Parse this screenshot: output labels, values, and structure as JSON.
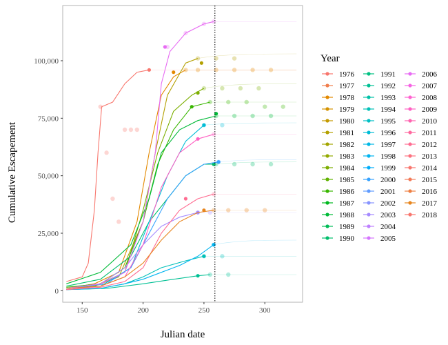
{
  "chart_data": {
    "type": "line",
    "xlabel": "Julian date",
    "ylabel": "Cumulative Escapement",
    "x_ticks": [
      150,
      200,
      250,
      300
    ],
    "x_tick_labels": [
      "150",
      "200",
      "250",
      "300"
    ],
    "y_ticks": [
      0,
      25000,
      50000,
      75000,
      100000
    ],
    "y_tick_labels": [
      "0",
      "25,000",
      "50,000",
      "75,000",
      "100,000"
    ],
    "xlim": [
      134,
      331
    ],
    "ylim": [
      -5000,
      124000
    ],
    "grid": false,
    "panel_border": true,
    "reference_line": {
      "axis": "x",
      "value": 259,
      "style": "dotted"
    },
    "legend": {
      "title": "Year",
      "placement": "right",
      "columns": 3,
      "entries": [
        {
          "name": "1976",
          "color": "#F8766D"
        },
        {
          "name": "1977",
          "color": "#F07E4D"
        },
        {
          "name": "1978",
          "color": "#E38900"
        },
        {
          "name": "1979",
          "color": "#D49200"
        },
        {
          "name": "1980",
          "color": "#C49A00"
        },
        {
          "name": "1981",
          "color": "#B3A000"
        },
        {
          "name": "1982",
          "color": "#A3A500"
        },
        {
          "name": "1983",
          "color": "#93AA00"
        },
        {
          "name": "1984",
          "color": "#7CAE00"
        },
        {
          "name": "1985",
          "color": "#61B200"
        },
        {
          "name": "1986",
          "color": "#39B600"
        },
        {
          "name": "1987",
          "color": "#00B81F"
        },
        {
          "name": "1988",
          "color": "#00BA38"
        },
        {
          "name": "1989",
          "color": "#00BC56"
        },
        {
          "name": "1990",
          "color": "#00BE6C"
        },
        {
          "name": "1991",
          "color": "#00C082"
        },
        {
          "name": "1992",
          "color": "#00C094"
        },
        {
          "name": "1993",
          "color": "#00C1A7"
        },
        {
          "name": "1994",
          "color": "#00C0B8"
        },
        {
          "name": "1995",
          "color": "#00BFC4"
        },
        {
          "name": "1996",
          "color": "#00BCD6"
        },
        {
          "name": "1997",
          "color": "#00B8E5"
        },
        {
          "name": "1998",
          "color": "#00B4F0"
        },
        {
          "name": "1999",
          "color": "#00ADFA"
        },
        {
          "name": "2000",
          "color": "#35A2FF"
        },
        {
          "name": "2001",
          "color": "#619CFF"
        },
        {
          "name": "2002",
          "color": "#8794FF"
        },
        {
          "name": "2003",
          "color": "#A58AFF"
        },
        {
          "name": "2004",
          "color": "#BE80FF"
        },
        {
          "name": "2005",
          "color": "#D575FE"
        },
        {
          "name": "2006",
          "color": "#E76BF3"
        },
        {
          "name": "2007",
          "color": "#F564E3"
        },
        {
          "name": "2008",
          "color": "#FF62D0"
        },
        {
          "name": "2009",
          "color": "#FF61C3"
        },
        {
          "name": "2010",
          "color": "#FF64B0"
        },
        {
          "name": "2011",
          "color": "#FF689F"
        },
        {
          "name": "2012",
          "color": "#FF6C91"
        },
        {
          "name": "2013",
          "color": "#FC717F"
        },
        {
          "name": "2014",
          "color": "#F8766D"
        },
        {
          "name": "2015",
          "color": "#F37B59"
        },
        {
          "name": "2016",
          "color": "#EE8044"
        },
        {
          "name": "2017",
          "color": "#E7851E"
        },
        {
          "name": "2018",
          "color": "#F8766D"
        }
      ]
    },
    "series": [
      {
        "name": "1976",
        "color": "#F8766D",
        "points": [
          [
            137,
            4000
          ],
          [
            150,
            6000
          ],
          [
            155,
            12000
          ],
          [
            160,
            35000
          ],
          [
            163,
            60000
          ],
          [
            166,
            80000
          ],
          [
            175,
            82000
          ],
          [
            185,
            90000
          ],
          [
            195,
            95000
          ],
          [
            205,
            96000
          ]
        ],
        "obs": [
          [
            165,
            80000
          ],
          [
            170,
            60000
          ],
          [
            175,
            40000
          ],
          [
            180,
            30000
          ],
          [
            185,
            70000
          ],
          [
            190,
            70000
          ],
          [
            195,
            70000
          ]
        ],
        "final": 96000,
        "marker": [
          205,
          96000
        ]
      },
      {
        "name": "1978",
        "color": "#E38900",
        "points": [
          [
            137,
            1000
          ],
          [
            160,
            3000
          ],
          [
            180,
            8000
          ],
          [
            195,
            30000
          ],
          [
            205,
            60000
          ],
          [
            215,
            85000
          ],
          [
            225,
            93000
          ],
          [
            235,
            96000
          ]
        ],
        "obs": [
          [
            235,
            96000
          ],
          [
            245,
            96000
          ],
          [
            260,
            96000
          ],
          [
            275,
            96000
          ],
          [
            290,
            96000
          ],
          [
            305,
            96000
          ]
        ],
        "final": 96000,
        "marker": [
          225,
          95000
        ]
      },
      {
        "name": "1981",
        "color": "#B3A000",
        "points": [
          [
            137,
            1000
          ],
          [
            160,
            2000
          ],
          [
            180,
            6000
          ],
          [
            200,
            30000
          ],
          [
            210,
            60000
          ],
          [
            220,
            85000
          ],
          [
            235,
            99000
          ],
          [
            245,
            101000
          ]
        ],
        "obs": [
          [
            245,
            101000
          ],
          [
            260,
            101000
          ],
          [
            275,
            101000
          ]
        ],
        "final": 103000,
        "marker": [
          248,
          99000
        ]
      },
      {
        "name": "1984",
        "color": "#7CAE00",
        "points": [
          [
            137,
            1000
          ],
          [
            160,
            2000
          ],
          [
            185,
            8000
          ],
          [
            200,
            35000
          ],
          [
            212,
            60000
          ],
          [
            225,
            78000
          ],
          [
            240,
            85000
          ],
          [
            250,
            88000
          ]
        ],
        "obs": [
          [
            250,
            88000
          ],
          [
            265,
            88000
          ],
          [
            280,
            88000
          ],
          [
            295,
            88000
          ]
        ],
        "final": 90000,
        "marker": [
          245,
          86000
        ]
      },
      {
        "name": "1986",
        "color": "#39B600",
        "points": [
          [
            137,
            1500
          ],
          [
            165,
            3000
          ],
          [
            185,
            10000
          ],
          [
            200,
            30000
          ],
          [
            212,
            55000
          ],
          [
            225,
            70000
          ],
          [
            240,
            80000
          ],
          [
            255,
            82000
          ]
        ],
        "obs": [
          [
            255,
            82000
          ],
          [
            270,
            82000
          ],
          [
            285,
            82000
          ],
          [
            300,
            80000
          ],
          [
            315,
            80000
          ]
        ],
        "final": 82000,
        "marker": [
          240,
          80000
        ]
      },
      {
        "name": "1988",
        "color": "#00BA38",
        "points": [
          [
            137,
            3000
          ],
          [
            165,
            8000
          ],
          [
            190,
            20000
          ],
          [
            205,
            40000
          ],
          [
            215,
            60000
          ],
          [
            230,
            70000
          ],
          [
            245,
            74000
          ],
          [
            260,
            76000
          ]
        ],
        "obs": [
          [
            260,
            76000
          ],
          [
            275,
            76000
          ],
          [
            290,
            76000
          ],
          [
            305,
            76000
          ]
        ],
        "final": 76000,
        "marker": [
          260,
          77000
        ]
      },
      {
        "name": "1990",
        "color": "#00BE6C",
        "points": [
          [
            137,
            2000
          ],
          [
            165,
            5000
          ],
          [
            190,
            15000
          ],
          [
            205,
            30000
          ],
          [
            220,
            40000
          ],
          [
            235,
            50000
          ],
          [
            250,
            55000
          ],
          [
            260,
            55000
          ]
        ],
        "obs": [
          [
            260,
            55000
          ],
          [
            275,
            55000
          ],
          [
            290,
            55000
          ],
          [
            305,
            55000
          ]
        ],
        "final": 56000,
        "marker": [
          258,
          55000
        ]
      },
      {
        "name": "1992",
        "color": "#00C094",
        "points": [
          [
            137,
            500
          ],
          [
            170,
            1000
          ],
          [
            200,
            3000
          ],
          [
            225,
            5000
          ],
          [
            245,
            6500
          ],
          [
            255,
            7000
          ]
        ],
        "obs": [
          [
            255,
            7000
          ],
          [
            270,
            7000
          ]
        ],
        "final": 7000,
        "marker": [
          245,
          6500
        ]
      },
      {
        "name": "1994",
        "color": "#00C0B8",
        "points": [
          [
            137,
            500
          ],
          [
            165,
            1000
          ],
          [
            185,
            3000
          ],
          [
            200,
            6000
          ],
          [
            215,
            10000
          ],
          [
            235,
            13000
          ],
          [
            250,
            15000
          ]
        ],
        "obs": [
          [
            250,
            15000
          ],
          [
            265,
            15000
          ]
        ],
        "final": 15000,
        "marker": [
          250,
          15000
        ]
      },
      {
        "name": "1996",
        "color": "#00BCD6",
        "points": [
          [
            137,
            1000
          ],
          [
            165,
            2000
          ],
          [
            190,
            10000
          ],
          [
            205,
            30000
          ],
          [
            220,
            50000
          ],
          [
            235,
            65000
          ],
          [
            250,
            72000
          ]
        ],
        "obs": [
          [
            250,
            72000
          ],
          [
            265,
            72000
          ]
        ],
        "final": 73000,
        "marker": [
          250,
          72000
        ]
      },
      {
        "name": "1998",
        "color": "#00B4F0",
        "points": [
          [
            137,
            500
          ],
          [
            165,
            1000
          ],
          [
            185,
            3000
          ],
          [
            200,
            5000
          ],
          [
            215,
            8000
          ],
          [
            230,
            11000
          ],
          [
            245,
            15000
          ],
          [
            258,
            20000
          ]
        ],
        "obs": [
          [
            258,
            20000
          ]
        ],
        "final": 22000,
        "marker": [
          258,
          20000
        ]
      },
      {
        "name": "2000",
        "color": "#35A2FF",
        "points": [
          [
            137,
            1000
          ],
          [
            170,
            3000
          ],
          [
            190,
            10000
          ],
          [
            205,
            25000
          ],
          [
            220,
            40000
          ],
          [
            235,
            50000
          ],
          [
            250,
            55000
          ],
          [
            262,
            56000
          ]
        ],
        "obs": [
          [
            262,
            56000
          ]
        ],
        "final": 57000,
        "marker": [
          262,
          56000
        ]
      },
      {
        "name": "2003",
        "color": "#A58AFF",
        "points": [
          [
            137,
            1000
          ],
          [
            165,
            3000
          ],
          [
            185,
            10000
          ],
          [
            200,
            20000
          ],
          [
            215,
            28000
          ],
          [
            230,
            32000
          ],
          [
            245,
            34000
          ]
        ],
        "obs": [
          [
            245,
            34000
          ],
          [
            255,
            34000
          ]
        ],
        "final": 34000,
        "marker": [
          245,
          34000
        ]
      },
      {
        "name": "2006",
        "color": "#E76BF3",
        "points": [
          [
            137,
            1000
          ],
          [
            165,
            3000
          ],
          [
            185,
            8000
          ],
          [
            200,
            30000
          ],
          [
            210,
            60000
          ],
          [
            215,
            90000
          ],
          [
            222,
            104000
          ],
          [
            235,
            112000
          ],
          [
            250,
            116000
          ],
          [
            258,
            117000
          ]
        ],
        "obs": [
          [
            220,
            106000
          ],
          [
            235,
            112000
          ],
          [
            250,
            116000
          ],
          [
            258,
            117000
          ]
        ],
        "final": 117000,
        "marker": [
          218,
          106000
        ]
      },
      {
        "name": "2009",
        "color": "#FF61C3",
        "points": [
          [
            137,
            500
          ],
          [
            165,
            2000
          ],
          [
            185,
            6000
          ],
          [
            200,
            20000
          ],
          [
            215,
            45000
          ],
          [
            230,
            60000
          ],
          [
            245,
            66000
          ],
          [
            258,
            68000
          ]
        ],
        "obs": [
          [
            258,
            68000
          ]
        ],
        "final": 68000,
        "marker": [
          245,
          66000
        ]
      },
      {
        "name": "2012",
        "color": "#FF6C91",
        "points": [
          [
            137,
            500
          ],
          [
            165,
            1500
          ],
          [
            185,
            4000
          ],
          [
            200,
            10000
          ],
          [
            215,
            25000
          ],
          [
            230,
            35000
          ],
          [
            245,
            40000
          ],
          [
            258,
            42000
          ]
        ],
        "obs": [
          [
            258,
            42000
          ]
        ],
        "final": 42000,
        "marker": [
          235,
          40000
        ]
      },
      {
        "name": "2017",
        "color": "#E7851E",
        "points": [
          [
            137,
            1000
          ],
          [
            165,
            2000
          ],
          [
            185,
            6000
          ],
          [
            200,
            12000
          ],
          [
            215,
            22000
          ],
          [
            230,
            30000
          ],
          [
            245,
            34000
          ],
          [
            258,
            35000
          ]
        ],
        "obs": [
          [
            258,
            35000
          ],
          [
            270,
            35000
          ],
          [
            285,
            35000
          ],
          [
            300,
            35000
          ]
        ],
        "final": 35000,
        "marker": [
          250,
          35000
        ]
      }
    ]
  }
}
